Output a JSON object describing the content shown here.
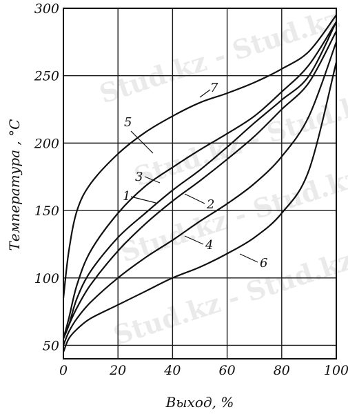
{
  "chart_data": {
    "type": "line",
    "title": "",
    "xlabel": "Выход, %",
    "ylabel": "Температура , °С",
    "xlim": [
      0,
      100
    ],
    "ylim": [
      40,
      300
    ],
    "x_ticks": [
      "0",
      "20",
      "40",
      "60",
      "80",
      "100"
    ],
    "y_ticks": [
      "50",
      "100",
      "150",
      "200",
      "250",
      "300"
    ],
    "grid": true,
    "series": [
      {
        "name": "1",
        "x": [
          0,
          2,
          5,
          10,
          20,
          30,
          40,
          50,
          60,
          70,
          80,
          90,
          100
        ],
        "y": [
          55,
          65,
          85,
          105,
          130,
          148,
          165,
          180,
          197,
          215,
          232,
          250,
          290
        ]
      },
      {
        "name": "2",
        "x": [
          0,
          2,
          5,
          10,
          20,
          30,
          40,
          50,
          60,
          70,
          80,
          90,
          100
        ],
        "y": [
          55,
          65,
          78,
          95,
          120,
          140,
          157,
          172,
          188,
          205,
          225,
          245,
          283
        ]
      },
      {
        "name": "3",
        "x": [
          0,
          2,
          5,
          10,
          20,
          30,
          40,
          50,
          60,
          70,
          80,
          90,
          100
        ],
        "y": [
          55,
          70,
          95,
          120,
          148,
          168,
          182,
          195,
          207,
          220,
          238,
          258,
          290
        ]
      },
      {
        "name": "4",
        "x": [
          0,
          2,
          5,
          10,
          20,
          30,
          40,
          50,
          60,
          70,
          80,
          90,
          100
        ],
        "y": [
          50,
          60,
          70,
          82,
          100,
          115,
          128,
          142,
          155,
          170,
          190,
          220,
          275
        ]
      },
      {
        "name": "5",
        "x": [
          0,
          2,
          5,
          10,
          20,
          30,
          40,
          50,
          60,
          70,
          80,
          90,
          100
        ],
        "y": [
          85,
          120,
          150,
          170,
          192,
          208,
          220,
          230,
          237,
          245,
          255,
          268,
          295
        ]
      },
      {
        "name": "6",
        "x": [
          0,
          2,
          5,
          10,
          20,
          30,
          40,
          50,
          60,
          70,
          80,
          90,
          100
        ],
        "y": [
          45,
          55,
          62,
          70,
          80,
          90,
          100,
          108,
          118,
          130,
          148,
          180,
          260
        ]
      }
    ],
    "extra_labels": [
      "7"
    ],
    "watermark": "Stud.kz - Stud.kz"
  }
}
